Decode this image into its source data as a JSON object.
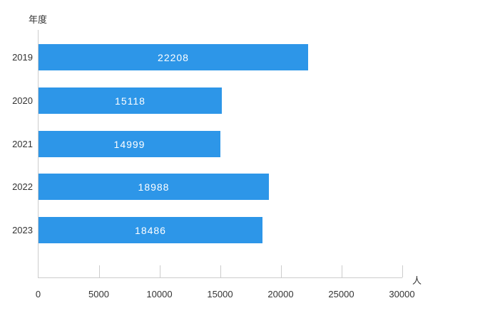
{
  "chart_data": {
    "type": "bar",
    "orientation": "horizontal",
    "title": "",
    "y_axis_title": "年度",
    "x_axis_unit": "人",
    "categories": [
      "2019",
      "2020",
      "2021",
      "2022",
      "2023"
    ],
    "values": [
      22208,
      15118,
      14999,
      18988,
      18486
    ],
    "value_labels": [
      "22208",
      "15118",
      "14999",
      "18988",
      "18486"
    ],
    "x_ticks": [
      "0",
      "5000",
      "10000",
      "15000",
      "20000",
      "25000",
      "30000"
    ],
    "x_tick_values": [
      0,
      5000,
      10000,
      15000,
      20000,
      25000,
      30000
    ],
    "xlim": [
      0,
      30000
    ],
    "grid": false,
    "legend": false,
    "bar_color": "#2d96e8",
    "value_label_color": "#ffffff",
    "axis_line_color": "#cccccc",
    "text_color": "#333333"
  }
}
